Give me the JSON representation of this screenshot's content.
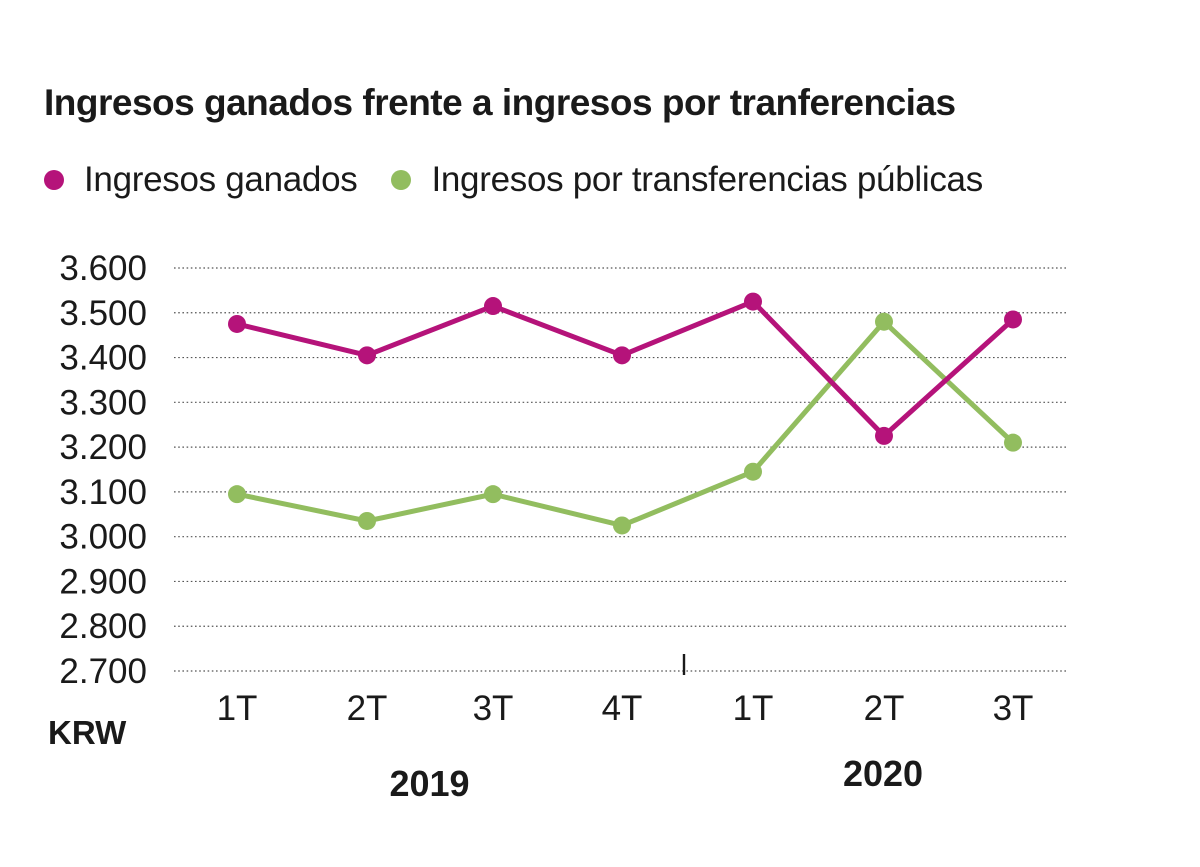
{
  "chart_data": {
    "type": "line",
    "title": "Ingresos ganados frente a ingresos por tranferencias",
    "ylabel": "KRW",
    "ylim": [
      2700,
      3600
    ],
    "yticks": [
      2700,
      2800,
      2900,
      3000,
      3100,
      3200,
      3300,
      3400,
      3500,
      3600
    ],
    "ytick_labels": [
      "2.700",
      "2.800",
      "2.900",
      "3.000",
      "3.100",
      "3.200",
      "3.300",
      "3.400",
      "3.500",
      "3.600"
    ],
    "categories": [
      "1T",
      "2T",
      "3T",
      "4T",
      "1T",
      "2T",
      "3T"
    ],
    "year_groups": [
      {
        "label": "2019",
        "from": 0,
        "to": 3
      },
      {
        "label": "2020",
        "from": 4,
        "to": 6
      }
    ],
    "grid": true,
    "legend_position": "top-left",
    "series": [
      {
        "name": "Ingresos ganados",
        "color": "#b5137a",
        "values": [
          3475,
          3405,
          3515,
          3405,
          3525,
          3225,
          3485
        ]
      },
      {
        "name": "Ingresos por transferencias públicas",
        "color": "#92bd5f",
        "values": [
          3095,
          3035,
          3095,
          3025,
          3145,
          3480,
          3210
        ]
      }
    ]
  }
}
